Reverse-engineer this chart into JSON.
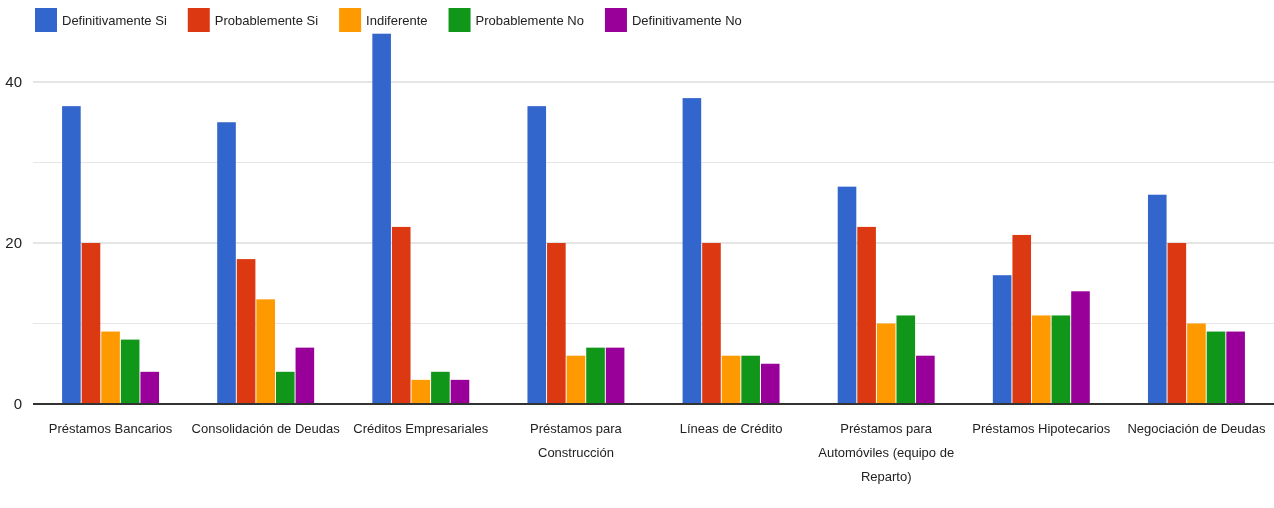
{
  "chart_data": {
    "type": "bar",
    "categories": [
      "Préstamos Bancarios",
      "Consolidación de Deudas",
      "Créditos Empresariales",
      "Préstamos para Construcción",
      "Líneas de Crédito",
      "Préstamos para Automóviles (equipo de Reparto)",
      "Préstamos Hipotecarios",
      "Negociación de Deudas"
    ],
    "series": [
      {
        "name": "Definitivamente Si",
        "color": "#3366cc",
        "values": [
          37,
          35,
          46,
          37,
          38,
          27,
          16,
          26
        ]
      },
      {
        "name": "Probablemente Si",
        "color": "#dc3912",
        "values": [
          20,
          18,
          22,
          20,
          20,
          22,
          21,
          20
        ]
      },
      {
        "name": "Indiferente",
        "color": "#ff9900",
        "values": [
          9,
          13,
          3,
          6,
          6,
          10,
          11,
          10
        ]
      },
      {
        "name": "Probablemente No",
        "color": "#109618",
        "values": [
          8,
          4,
          4,
          7,
          6,
          11,
          11,
          9
        ]
      },
      {
        "name": "Definitivamente No",
        "color": "#990099",
        "values": [
          4,
          7,
          3,
          7,
          5,
          6,
          14,
          9
        ]
      }
    ],
    "ylim": [
      0,
      46
    ],
    "yticks": [
      0,
      {
        "value": 10,
        "label": null
      },
      20,
      {
        "value": 30,
        "label": null
      },
      40
    ],
    "grid": true,
    "legend": "top"
  }
}
